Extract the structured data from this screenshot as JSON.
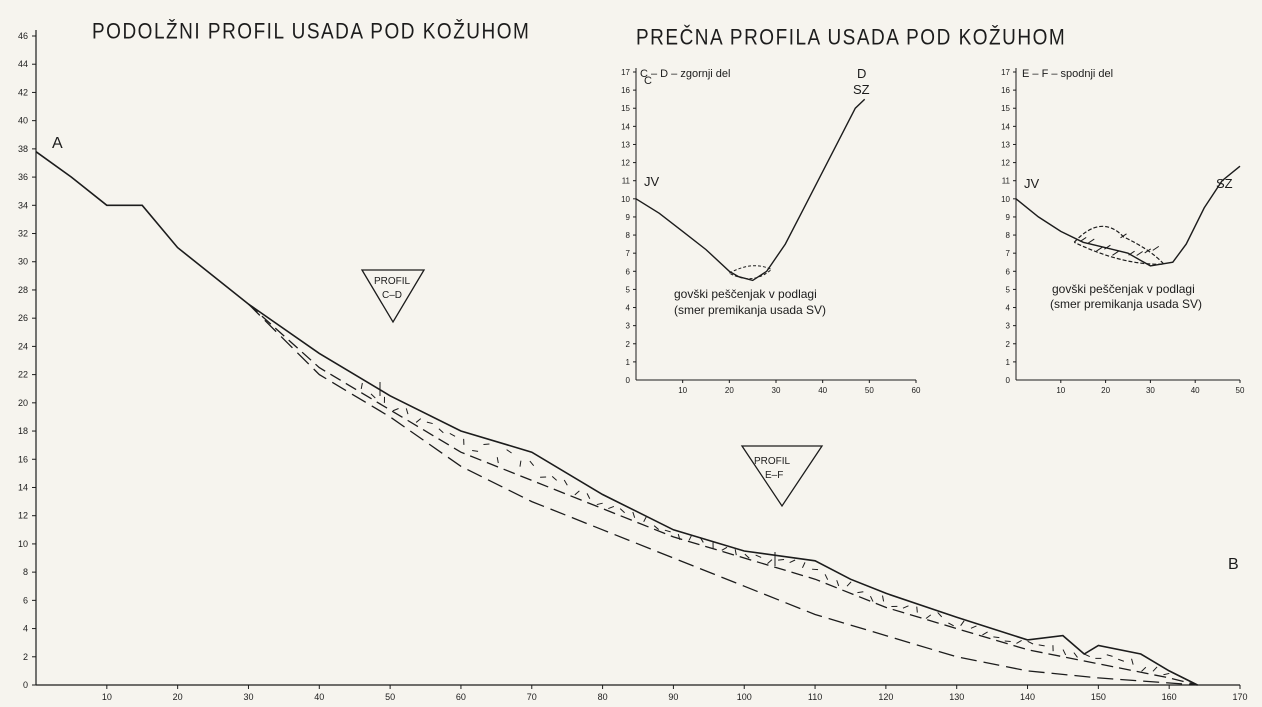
{
  "longitudinal": {
    "title": "PODOLŽNI PROFIL USADA POD KOŽUHOM",
    "point_a": "A",
    "point_b": "B",
    "marker_cd": {
      "line1": "PROFIL",
      "line2": "C–D"
    },
    "marker_ef": {
      "line1": "PROFIL",
      "line2": "E–F"
    },
    "y_ticks": [
      0,
      2,
      4,
      6,
      8,
      10,
      12,
      14,
      16,
      18,
      20,
      22,
      24,
      26,
      28,
      30,
      32,
      34,
      36,
      38,
      40,
      42,
      44,
      46
    ],
    "x_ticks": [
      10,
      20,
      30,
      40,
      50,
      60,
      70,
      80,
      90,
      100,
      110,
      120,
      130,
      140,
      150,
      160,
      170
    ],
    "surface": [
      [
        0,
        37.8
      ],
      [
        5,
        36
      ],
      [
        10,
        34
      ],
      [
        15,
        34
      ],
      [
        20,
        31
      ],
      [
        30,
        27
      ],
      [
        40,
        23.5
      ],
      [
        50,
        20.5
      ],
      [
        60,
        18
      ],
      [
        70,
        16.5
      ],
      [
        80,
        13.5
      ],
      [
        90,
        11
      ],
      [
        100,
        9.5
      ],
      [
        110,
        8.8
      ],
      [
        115,
        7.5
      ],
      [
        120,
        6.5
      ],
      [
        130,
        4.8
      ],
      [
        140,
        3.2
      ],
      [
        145,
        3.5
      ],
      [
        148,
        2.2
      ],
      [
        150,
        2.8
      ],
      [
        156,
        2.2
      ],
      [
        160,
        1
      ],
      [
        164,
        0
      ]
    ],
    "slip_inner": [
      [
        30,
        27
      ],
      [
        40,
        22.5
      ],
      [
        50,
        19.5
      ],
      [
        60,
        16.5
      ],
      [
        70,
        14.5
      ],
      [
        80,
        12.5
      ],
      [
        90,
        10.5
      ],
      [
        100,
        9
      ],
      [
        110,
        7.5
      ],
      [
        120,
        5.5
      ],
      [
        130,
        4
      ],
      [
        140,
        2.5
      ],
      [
        150,
        1.5
      ],
      [
        160,
        0.5
      ],
      [
        164,
        0
      ]
    ],
    "slip_outer": [
      [
        30,
        27
      ],
      [
        40,
        22
      ],
      [
        50,
        19
      ],
      [
        60,
        15.5
      ],
      [
        70,
        13
      ],
      [
        80,
        11
      ],
      [
        90,
        9
      ],
      [
        100,
        7
      ],
      [
        110,
        5
      ],
      [
        120,
        3.5
      ],
      [
        130,
        2
      ],
      [
        140,
        1
      ],
      [
        150,
        0.5
      ],
      [
        164,
        0
      ]
    ]
  },
  "cross": {
    "title": "PREČNA PROFILA USADA POD KOŽUHOM",
    "cd": {
      "label": "C – D – zgornji del",
      "c": "C",
      "d": "D",
      "sz": "SZ",
      "jv": "JV",
      "note1": "govški peščenjak v podlagi",
      "note2": "(smer premikanja usada SV)",
      "y_ticks": [
        1,
        2,
        3,
        4,
        5,
        6,
        7,
        8,
        9,
        10,
        11,
        12,
        13,
        14,
        15,
        16,
        17
      ],
      "x_ticks": [
        10,
        20,
        30,
        40,
        50,
        60
      ],
      "surface": [
        [
          0,
          10
        ],
        [
          5,
          9.2
        ],
        [
          10,
          8.2
        ],
        [
          15,
          7.2
        ],
        [
          20,
          6
        ],
        [
          22,
          5.7
        ],
        [
          25,
          5.5
        ],
        [
          28,
          6
        ],
        [
          32,
          7.5
        ],
        [
          36,
          9.5
        ],
        [
          40,
          11.5
        ],
        [
          44,
          13.5
        ],
        [
          47,
          15
        ],
        [
          49,
          15.5
        ]
      ]
    },
    "ef": {
      "label": "E – F – spodnji del",
      "jv": "JV",
      "sz": "SZ",
      "note1": "govški peščenjak v podlagi",
      "note2": "(smer premikanja usada SV)",
      "y_ticks": [
        1,
        2,
        3,
        4,
        5,
        6,
        7,
        8,
        9,
        10,
        11,
        12,
        13,
        14,
        15,
        16,
        17
      ],
      "x_ticks": [
        10,
        20,
        30,
        40,
        50
      ],
      "surface": [
        [
          0,
          10
        ],
        [
          5,
          9
        ],
        [
          10,
          8.2
        ],
        [
          15,
          7.6
        ],
        [
          20,
          7.3
        ],
        [
          25,
          7
        ],
        [
          30,
          6.3
        ],
        [
          35,
          6.5
        ],
        [
          38,
          7.5
        ],
        [
          42,
          9.5
        ],
        [
          46,
          11
        ],
        [
          50,
          11.8
        ]
      ]
    }
  },
  "colors": {
    "ink": "#1c1c1c",
    "paper": "#f6f4ee"
  }
}
